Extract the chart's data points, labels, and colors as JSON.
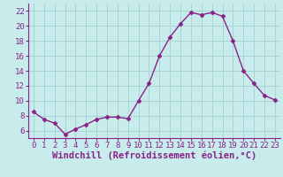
{
  "x": [
    0,
    1,
    2,
    3,
    4,
    5,
    6,
    7,
    8,
    9,
    10,
    11,
    12,
    13,
    14,
    15,
    16,
    17,
    18,
    19,
    20,
    21,
    22,
    23
  ],
  "y": [
    8.5,
    7.5,
    7.0,
    5.5,
    6.2,
    6.8,
    7.5,
    7.8,
    7.8,
    7.6,
    10.0,
    12.3,
    16.0,
    18.5,
    20.3,
    21.8,
    21.5,
    21.8,
    21.3,
    18.0,
    14.0,
    12.3,
    10.7,
    10.1
  ],
  "line_color": "#882288",
  "marker": "D",
  "markersize": 2.5,
  "linewidth": 1.0,
  "bg_color": "#c8ecec",
  "grid_color": "#a8d4d4",
  "xlabel": "Windchill (Refroidissement éolien,°C)",
  "ylim": [
    5.0,
    23.0
  ],
  "xlim": [
    -0.5,
    23.5
  ],
  "yticks": [
    6,
    8,
    10,
    12,
    14,
    16,
    18,
    20,
    22
  ],
  "xticks": [
    0,
    1,
    2,
    3,
    4,
    5,
    6,
    7,
    8,
    9,
    10,
    11,
    12,
    13,
    14,
    15,
    16,
    17,
    18,
    19,
    20,
    21,
    22,
    23
  ],
  "tick_fontsize": 6.5,
  "xlabel_fontsize": 7.5,
  "label_color": "#882288",
  "tick_color": "#882288",
  "spine_color": "#882288"
}
